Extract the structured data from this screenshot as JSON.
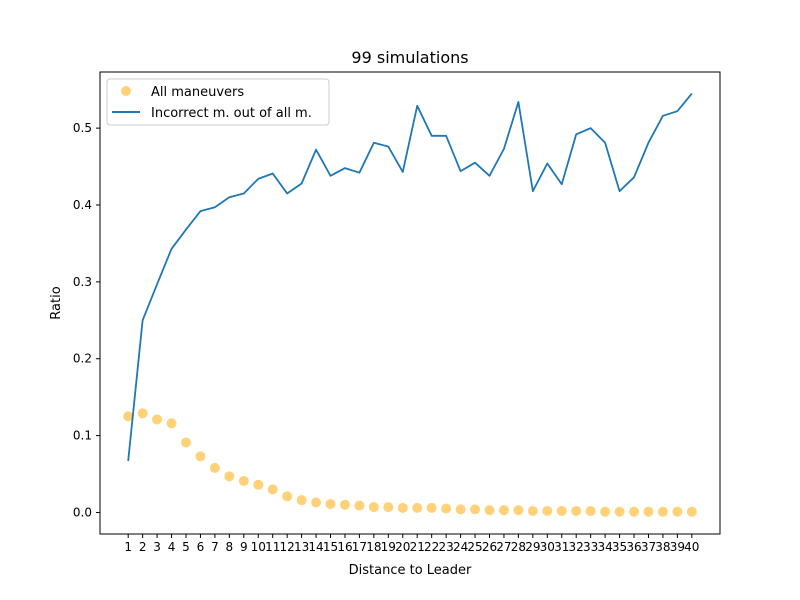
{
  "chart_data": {
    "type": "line",
    "title": "99 simulations",
    "xlabel": "Distance to Leader",
    "ylabel": "Ratio",
    "xlim": [
      -0.95,
      41.95
    ],
    "ylim": [
      -0.028,
      0.573
    ],
    "x": [
      1,
      2,
      3,
      4,
      5,
      6,
      7,
      8,
      9,
      10,
      11,
      12,
      13,
      14,
      15,
      16,
      17,
      18,
      19,
      20,
      21,
      22,
      23,
      24,
      25,
      26,
      27,
      28,
      29,
      30,
      31,
      32,
      33,
      34,
      35,
      36,
      37,
      38,
      39,
      40
    ],
    "x_tick_labels": [
      "1",
      "2",
      "3",
      "4",
      "5",
      "6",
      "7",
      "8",
      "9",
      "10",
      "11",
      "12",
      "13",
      "14",
      "15",
      "16",
      "17",
      "18",
      "19",
      "20",
      "21",
      "22",
      "23",
      "24",
      "25",
      "26",
      "27",
      "28",
      "29",
      "30",
      "31",
      "32",
      "33",
      "34",
      "35",
      "36",
      "37",
      "38",
      "39",
      "40"
    ],
    "y_ticks": [
      0.0,
      0.1,
      0.2,
      0.3,
      0.4,
      0.5
    ],
    "y_tick_labels": [
      "0.0",
      "0.1",
      "0.2",
      "0.3",
      "0.4",
      "0.5"
    ],
    "legend_position": "top-left",
    "grid": false,
    "series": [
      {
        "name": "All maneuvers",
        "kind": "scatter",
        "color": "#ffbf40",
        "values": [
          0.125,
          0.129,
          0.121,
          0.116,
          0.091,
          0.073,
          0.058,
          0.047,
          0.041,
          0.036,
          0.03,
          0.021,
          0.016,
          0.013,
          0.011,
          0.01,
          0.009,
          0.007,
          0.007,
          0.006,
          0.006,
          0.006,
          0.005,
          0.004,
          0.004,
          0.003,
          0.003,
          0.003,
          0.002,
          0.002,
          0.002,
          0.002,
          0.002,
          0.001,
          0.001,
          0.001,
          0.001,
          0.001,
          0.001,
          0.001
        ]
      },
      {
        "name": "Incorrect m. out of all m.",
        "kind": "line",
        "color": "#1f77b4",
        "values": [
          0.067,
          0.25,
          0.297,
          0.343,
          0.368,
          0.392,
          0.397,
          0.41,
          0.415,
          0.434,
          0.441,
          0.415,
          0.428,
          0.472,
          0.438,
          0.448,
          0.442,
          0.481,
          0.476,
          0.443,
          0.529,
          0.49,
          0.49,
          0.444,
          0.455,
          0.438,
          0.473,
          0.534,
          0.418,
          0.454,
          0.427,
          0.492,
          0.5,
          0.481,
          0.418,
          0.436,
          0.481,
          0.516,
          0.522,
          0.545
        ]
      }
    ]
  }
}
